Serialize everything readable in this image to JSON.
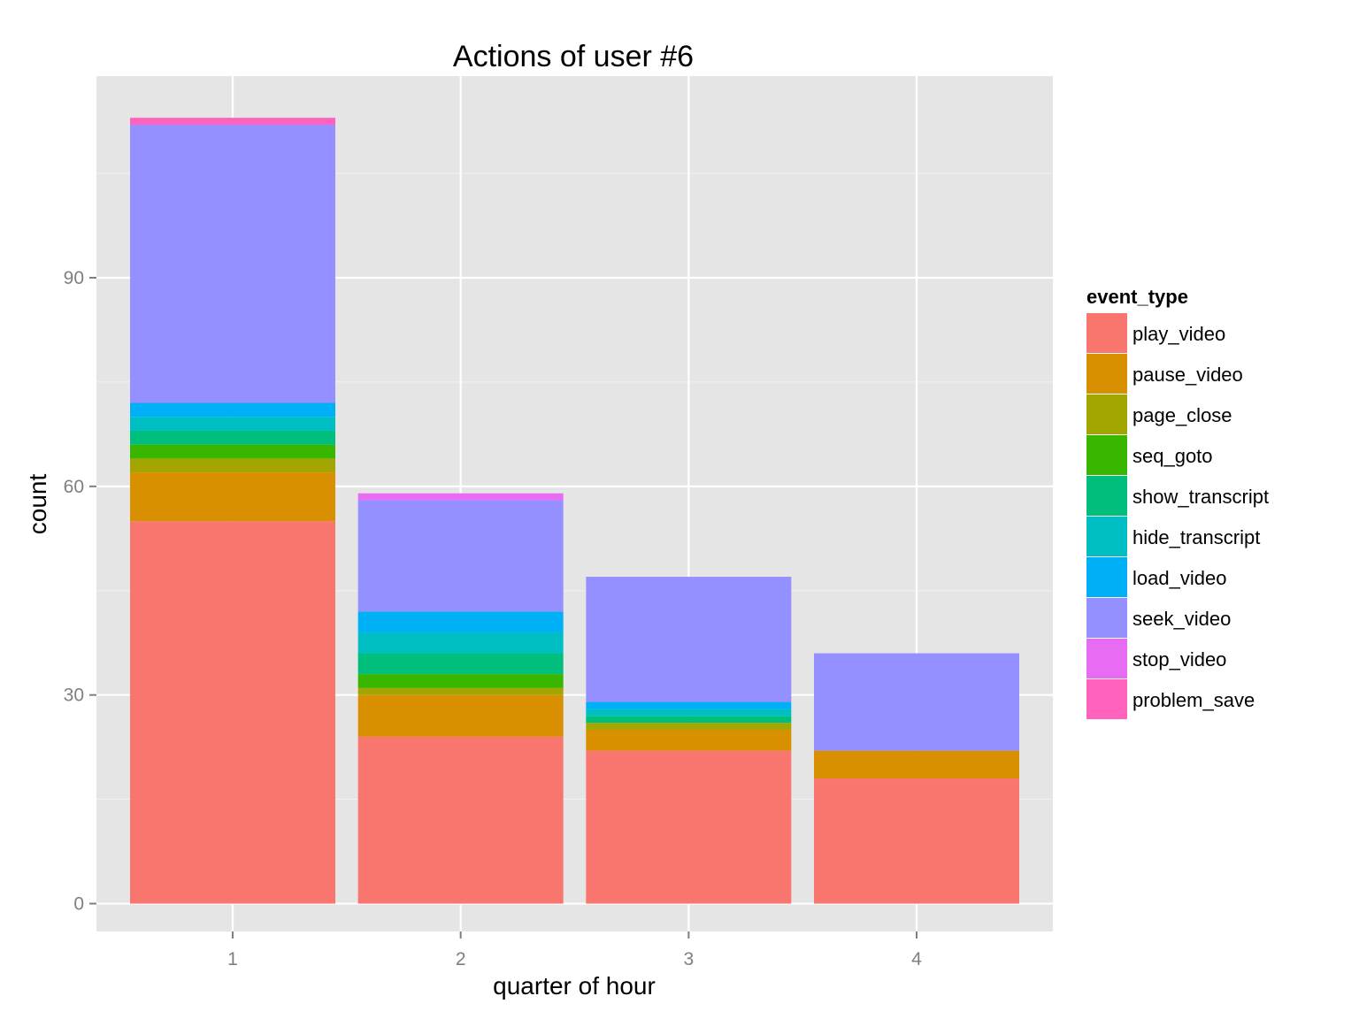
{
  "chart_data": {
    "type": "bar",
    "stacked": true,
    "title": "Actions of user #6",
    "xlabel": "quarter of hour",
    "ylabel": "count",
    "categories": [
      "1",
      "2",
      "3",
      "4"
    ],
    "ylim": [
      -4,
      119
    ],
    "yticks": [
      0,
      30,
      60,
      90
    ],
    "grid": true,
    "legend": {
      "title": "event_type",
      "position": "right"
    },
    "series": [
      {
        "name": "play_video",
        "color": "#F8766D",
        "values": [
          55,
          24,
          22,
          18
        ]
      },
      {
        "name": "pause_video",
        "color": "#D89000",
        "values": [
          7,
          6,
          3,
          4
        ]
      },
      {
        "name": "page_close",
        "color": "#A3A500",
        "values": [
          2,
          1,
          1,
          0
        ]
      },
      {
        "name": "seq_goto",
        "color": "#39B600",
        "values": [
          2,
          2,
          0,
          0
        ]
      },
      {
        "name": "show_transcript",
        "color": "#00BF7D",
        "values": [
          2,
          3,
          1,
          0
        ]
      },
      {
        "name": "hide_transcript",
        "color": "#00BFC4",
        "values": [
          2,
          3,
          1,
          0
        ]
      },
      {
        "name": "load_video",
        "color": "#00B0F6",
        "values": [
          2,
          3,
          1,
          0
        ]
      },
      {
        "name": "seek_video",
        "color": "#9590FF",
        "values": [
          40,
          16,
          18,
          14
        ]
      },
      {
        "name": "stop_video",
        "color": "#E76BF3",
        "values": [
          0,
          1,
          0,
          0
        ]
      },
      {
        "name": "problem_save",
        "color": "#FF62BC",
        "values": [
          1,
          0,
          0,
          0
        ]
      }
    ]
  }
}
